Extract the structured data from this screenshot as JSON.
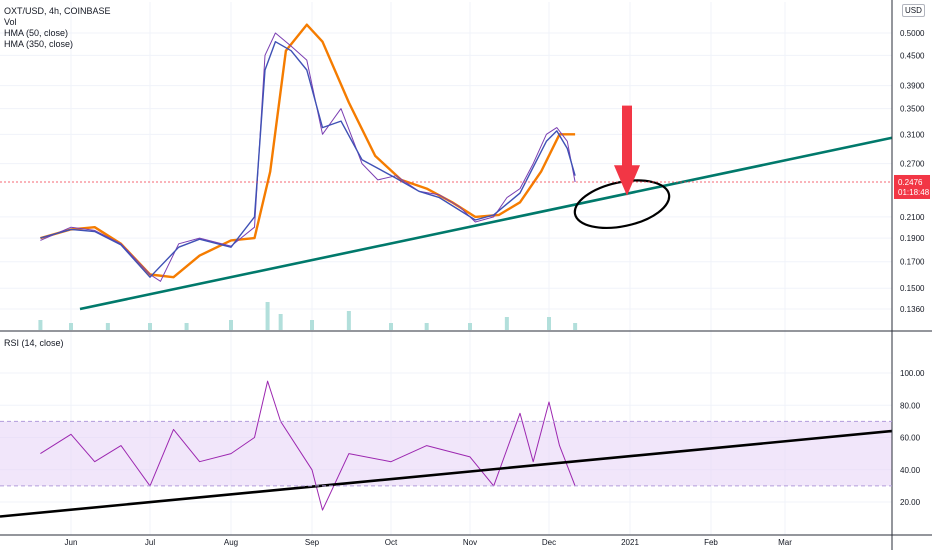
{
  "legend": {
    "symbol": "OXT/USD, 4h, COINBASE",
    "vol": "Vol",
    "hma50": "HMA (50, close)",
    "hma350": "HMA (350, close)",
    "rsi": "RSI (14, close)"
  },
  "currency_badge": "USD",
  "colors": {
    "price": "#7b3fb2",
    "hma_fast": "#3f51b5",
    "hma_slow": "#f57c00",
    "trendline": "#00796b",
    "arrow": "#f23645",
    "rsi": "#9c27b0",
    "rsi_band": "#e8d5f7",
    "volume": "#b2dfdb",
    "last_price_bg": "#f23645",
    "grid": "#f0f3fa"
  },
  "chart_data": [
    {
      "type": "line",
      "title": "OXT/USD, 4h, COINBASE",
      "y_axis": {
        "scale": "log",
        "ticks": [
          "0.5000",
          "0.4500",
          "0.3900",
          "0.3500",
          "0.3100",
          "0.2700",
          "0.2100",
          "0.1900",
          "0.1700",
          "0.1500",
          "0.1360"
        ]
      },
      "x_axis": {
        "ticks": [
          "Jun",
          "Jul",
          "Aug",
          "Sep",
          "Oct",
          "Nov",
          "Dec",
          "2021",
          "Feb",
          "Mar"
        ]
      },
      "last_price": "0.2476",
      "countdown": "01:18:48",
      "series": [
        {
          "name": "OXT/USD",
          "x": [
            "May 20",
            "Jun 1",
            "Jun 10",
            "Jun 20",
            "Jul 1",
            "Jul 5",
            "Jul 12",
            "Jul 20",
            "Aug 1",
            "Aug 10",
            "Aug 14",
            "Aug 18",
            "Aug 24",
            "Aug 30",
            "Sep 5",
            "Sep 12",
            "Sep 20",
            "Sep 26",
            "Oct 3",
            "Oct 12",
            "Oct 20",
            "Oct 28",
            "Nov 3",
            "Nov 10",
            "Nov 15",
            "Nov 20",
            "Nov 25",
            "Nov 30",
            "Dec 4",
            "Dec 8",
            "Dec 11"
          ],
          "values": [
            0.188,
            0.2,
            0.197,
            0.185,
            0.16,
            0.155,
            0.185,
            0.19,
            0.183,
            0.2,
            0.45,
            0.5,
            0.47,
            0.44,
            0.31,
            0.35,
            0.27,
            0.25,
            0.255,
            0.237,
            0.233,
            0.22,
            0.205,
            0.21,
            0.23,
            0.24,
            0.27,
            0.31,
            0.32,
            0.3,
            0.2476
          ]
        },
        {
          "name": "HMA (50, close)",
          "x": [
            "May 20",
            "Jun 1",
            "Jun 10",
            "Jun 20",
            "Jul 1",
            "Jul 12",
            "Jul 20",
            "Aug 1",
            "Aug 10",
            "Aug 14",
            "Aug 18",
            "Aug 24",
            "Aug 30",
            "Sep 5",
            "Sep 12",
            "Sep 20",
            "Oct 3",
            "Oct 12",
            "Oct 20",
            "Nov 3",
            "Nov 10",
            "Nov 20",
            "Nov 30",
            "Dec 4",
            "Dec 8",
            "Dec 11"
          ],
          "values": [
            0.19,
            0.198,
            0.196,
            0.184,
            0.158,
            0.182,
            0.189,
            0.182,
            0.21,
            0.42,
            0.48,
            0.46,
            0.42,
            0.32,
            0.33,
            0.275,
            0.252,
            0.237,
            0.23,
            0.207,
            0.212,
            0.235,
            0.3,
            0.315,
            0.29,
            0.255
          ]
        },
        {
          "name": "HMA (350, close)",
          "x": [
            "May 20",
            "Jun 1",
            "Jun 10",
            "Jun 20",
            "Jul 1",
            "Jul 10",
            "Jul 20",
            "Aug 1",
            "Aug 10",
            "Aug 16",
            "Aug 22",
            "Aug 30",
            "Sep 5",
            "Sep 15",
            "Sep 25",
            "Oct 5",
            "Oct 15",
            "Oct 25",
            "Nov 3",
            "Nov 12",
            "Nov 20",
            "Nov 28",
            "Dec 5",
            "Dec 11"
          ],
          "values": [
            0.19,
            0.198,
            0.2,
            0.185,
            0.16,
            0.158,
            0.175,
            0.188,
            0.19,
            0.26,
            0.46,
            0.52,
            0.48,
            0.36,
            0.28,
            0.25,
            0.24,
            0.225,
            0.21,
            0.212,
            0.225,
            0.26,
            0.31,
            0.31
          ]
        }
      ],
      "volume": {
        "name": "Vol",
        "x": [
          "May 20",
          "Jun 1",
          "Jun 15",
          "Jul 1",
          "Jul 15",
          "Aug 1",
          "Aug 15",
          "Aug 20",
          "Sep 1",
          "Sep 15",
          "Oct 1",
          "Oct 15",
          "Nov 1",
          "Nov 15",
          "Dec 1",
          "Dec 11"
        ],
        "values": [
          2,
          1,
          1,
          1,
          1,
          2,
          8,
          4,
          2,
          5,
          1,
          1,
          1,
          3,
          3,
          1
        ]
      }
    },
    {
      "type": "line",
      "title": "RSI (14, close)",
      "y_axis": {
        "ticks": [
          "100.00",
          "80.00",
          "60.00",
          "40.00",
          "20.00"
        ],
        "ylim": [
          10,
          100
        ]
      },
      "band": [
        30,
        70
      ],
      "series": [
        {
          "name": "RSI (14, close)",
          "x": [
            "May 20",
            "Jun 1",
            "Jun 10",
            "Jun 20",
            "Jul 1",
            "Jul 10",
            "Jul 20",
            "Aug 1",
            "Aug 10",
            "Aug 15",
            "Aug 20",
            "Sep 1",
            "Sep 5",
            "Sep 15",
            "Oct 1",
            "Oct 15",
            "Nov 1",
            "Nov 10",
            "Nov 20",
            "Nov 25",
            "Dec 1",
            "Dec 5",
            "Dec 11"
          ],
          "values": [
            50,
            62,
            45,
            55,
            30,
            65,
            45,
            50,
            60,
            95,
            70,
            40,
            15,
            50,
            45,
            55,
            48,
            30,
            75,
            45,
            82,
            55,
            30
          ]
        }
      ]
    }
  ]
}
